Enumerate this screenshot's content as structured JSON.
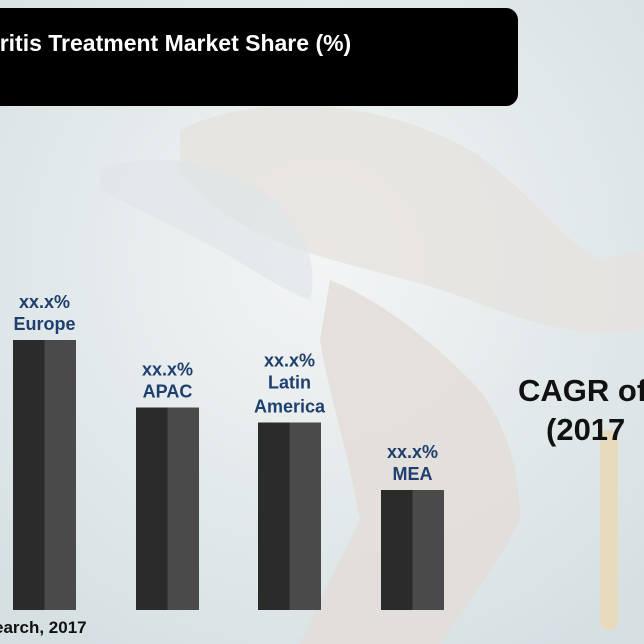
{
  "title": "thritis Treatment Market Share (%)",
  "cagr_label": "CAGR of",
  "cagr_years": "(2017",
  "source": "earch, 2017",
  "colors": {
    "bar_dark": "#2b2b2b",
    "bar_light": "#4a4a4a",
    "label": "#1f3f6e",
    "title_bg": "#000000"
  },
  "chart_data": {
    "type": "bar",
    "title": "thritis Treatment Market Share (%)",
    "xlabel": "",
    "ylabel": "",
    "grid": false,
    "categories": [
      "Europe",
      "APAC",
      "Latin America",
      "MEA"
    ],
    "value_labels": [
      "xx.x%",
      "xx.x%",
      "xx.x%",
      "xx.x%"
    ],
    "values": [
      36,
      27,
      25,
      16
    ],
    "ylim": [
      0,
      40
    ]
  }
}
